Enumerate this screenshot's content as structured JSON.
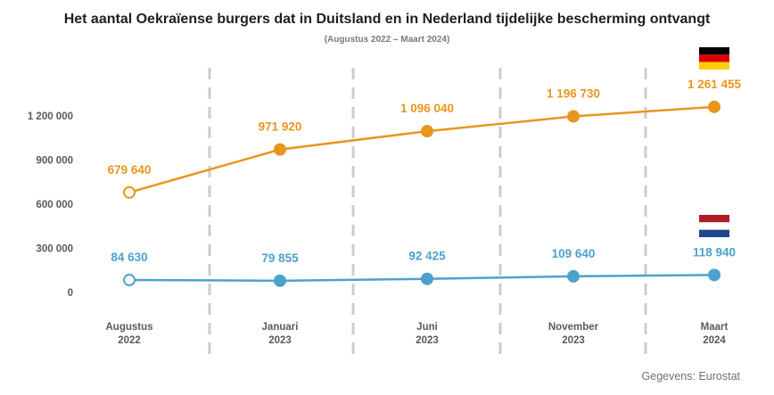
{
  "title": "Het aantal Oekraïense burgers dat in Duitsland en in Nederland tijdelijke bescherming ontvangt",
  "subtitle": "(Augustus 2022 – Maart 2024)",
  "source": "Gegevens: Eurostat",
  "colors": {
    "germany": "#e8961e",
    "netherlands": "#4ba3cc",
    "grid": "#cccccc",
    "axis_text": "#5a5a5a"
  },
  "chart_data": {
    "type": "line",
    "categories": [
      [
        "Augustus",
        "2022"
      ],
      [
        "Januari",
        "2023"
      ],
      [
        "Juni",
        "2023"
      ],
      [
        "November",
        "2023"
      ],
      [
        "Maart",
        "2024"
      ]
    ],
    "series": [
      {
        "country": "Duitsland",
        "icon": "germany-flag-icon",
        "color": "#e8961e",
        "values": [
          679640,
          971920,
          1096040,
          1196730,
          1261455
        ],
        "labels": [
          "679 640",
          "971 920",
          "1 096 040",
          "1 196 730",
          "1 261 455"
        ]
      },
      {
        "country": "Nederland",
        "icon": "netherlands-flag-icon",
        "color": "#4ba3cc",
        "values": [
          84630,
          79855,
          92425,
          109640,
          118940
        ],
        "labels": [
          "84 630",
          "79 855",
          "92 425",
          "109 640",
          "118 940"
        ]
      }
    ],
    "yticks": [
      0,
      300000,
      600000,
      900000,
      1200000
    ],
    "ytick_labels": [
      "0",
      "300 000",
      "600 000",
      "900 000",
      "1 200 000"
    ],
    "ylim": [
      0,
      1300000
    ],
    "grid": "vertical dashed",
    "legend": "flags at right end of each line"
  }
}
